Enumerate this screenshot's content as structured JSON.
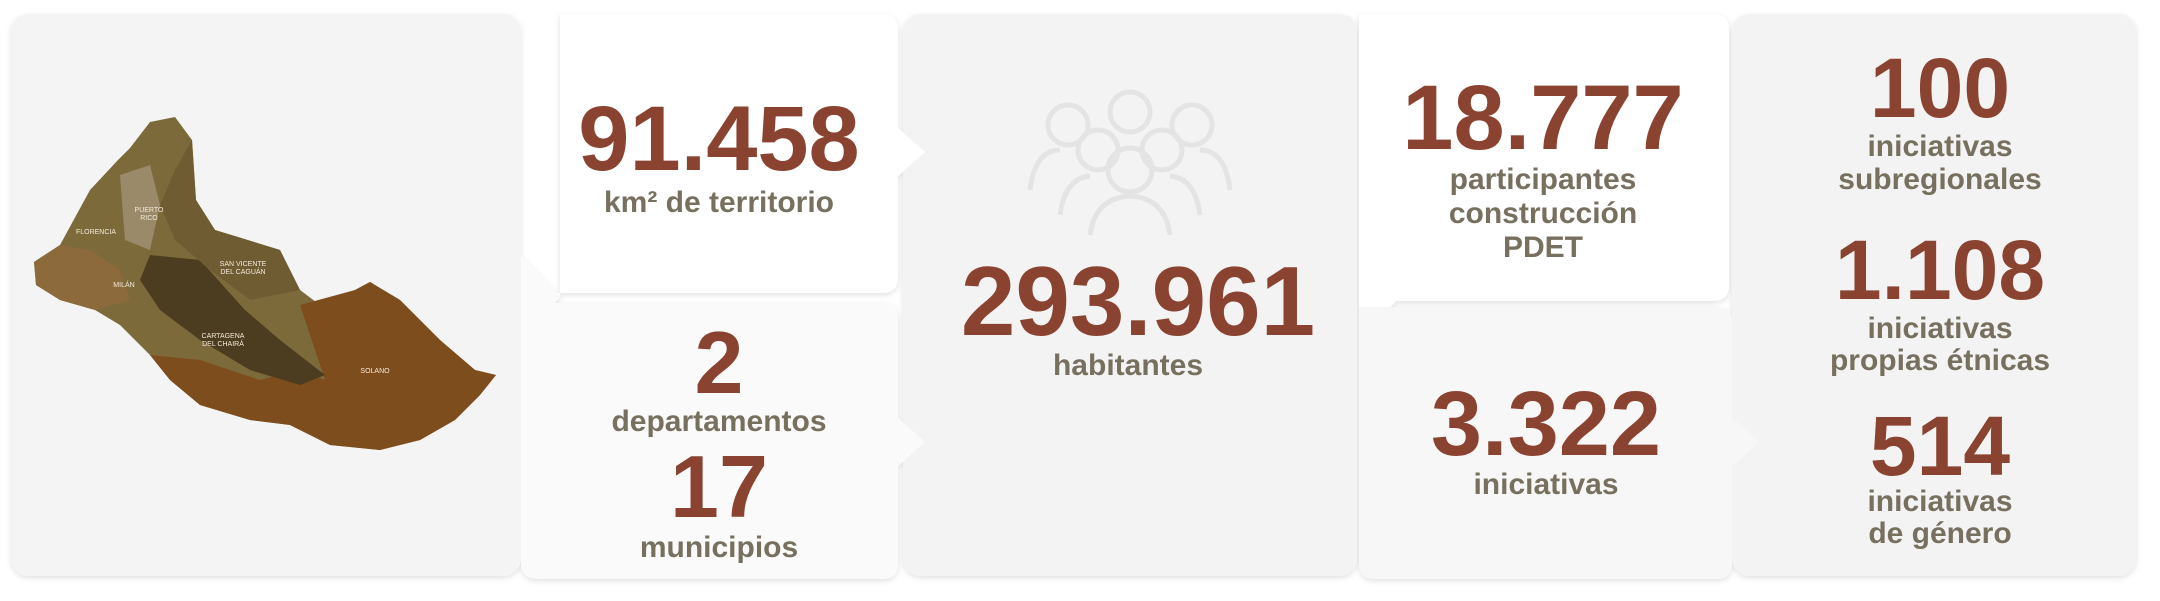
{
  "map": {
    "labels": [
      [
        "PUERTO",
        "RICO"
      ],
      [
        "FLORENCIA"
      ],
      [
        "SAN VICENTE",
        "DEL CAGUÁN"
      ],
      [
        "CARTAGENA",
        "DEL CHAIRÁ"
      ],
      [
        "SOLANO"
      ],
      [
        "MILÁN"
      ]
    ]
  },
  "stats": {
    "territory": {
      "value": "91.458",
      "label": "km² de territorio"
    },
    "departments": {
      "value": "2",
      "label": "departamentos"
    },
    "municipalities": {
      "value": "17",
      "label": "municipios"
    },
    "population": {
      "value": "293.961",
      "label": "habitantes"
    },
    "participants": {
      "value": "18.777",
      "label": [
        "participantes",
        "construcción",
        "PDET"
      ]
    },
    "initiatives": {
      "value": "3.322",
      "label": "iniciativas"
    },
    "subregional": {
      "value": "100",
      "label": [
        "iniciativas",
        "subregionales"
      ]
    },
    "ethnic": {
      "value": "1.108",
      "label": [
        "iniciativas",
        "propias étnicas"
      ]
    },
    "gender": {
      "value": "514",
      "label": [
        "iniciativas",
        "de género"
      ]
    }
  }
}
